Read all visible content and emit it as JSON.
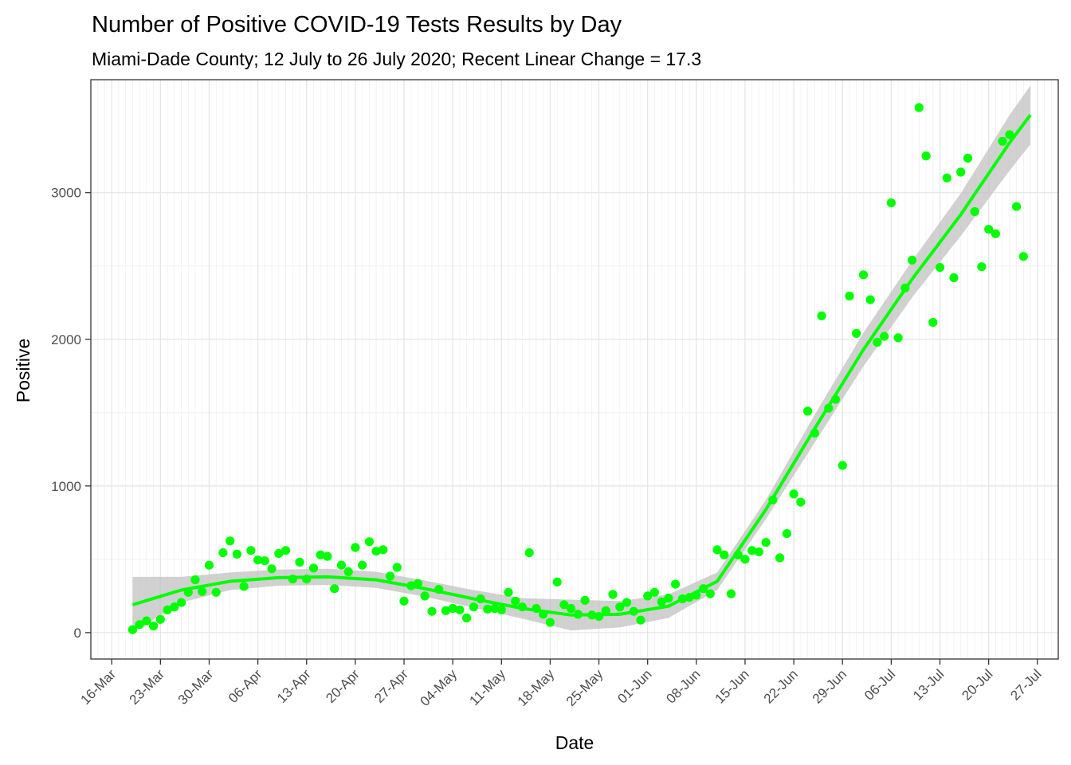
{
  "chart_data": {
    "type": "scatter",
    "title": "Number of Positive COVID-19 Tests Results by Day",
    "subtitle": "Miami-Dade County; 12 July to 26 July 2020; Recent Linear Change = 17.3",
    "xlabel": "Date",
    "ylabel": "Positive",
    "x_tick_labels": [
      "16-Mar",
      "23-Mar",
      "30-Mar",
      "06-Apr",
      "13-Apr",
      "20-Apr",
      "27-Apr",
      "04-May",
      "11-May",
      "18-May",
      "25-May",
      "01-Jun",
      "08-Jun",
      "15-Jun",
      "22-Jun",
      "29-Jun",
      "06-Jul",
      "13-Jul",
      "20-Jul",
      "27-Jul"
    ],
    "x_tick_dates": [
      "2020-03-16",
      "2020-03-23",
      "2020-03-30",
      "2020-04-06",
      "2020-04-13",
      "2020-04-20",
      "2020-04-27",
      "2020-05-04",
      "2020-05-11",
      "2020-05-18",
      "2020-05-25",
      "2020-06-01",
      "2020-06-08",
      "2020-06-15",
      "2020-06-22",
      "2020-06-29",
      "2020-07-06",
      "2020-07-13",
      "2020-07-20",
      "2020-07-27"
    ],
    "y_ticks": [
      0,
      1000,
      2000,
      3000
    ],
    "xlim": [
      "2020-03-13",
      "2020-07-30"
    ],
    "ylim": [
      -180,
      3770
    ],
    "grid": true,
    "points_color": "#00ff00",
    "smooth_color": "#00ff00",
    "band_color": "#bebebe",
    "points": {
      "start_date": "2020-03-19",
      "values": [
        20,
        55,
        80,
        45,
        90,
        155,
        175,
        205,
        275,
        360,
        280,
        460,
        275,
        545,
        625,
        535,
        315,
        560,
        495,
        490,
        435,
        540,
        560,
        365,
        480,
        365,
        440,
        530,
        520,
        300,
        460,
        415,
        580,
        460,
        620,
        555,
        565,
        385,
        445,
        215,
        320,
        335,
        250,
        145,
        295,
        150,
        165,
        155,
        100,
        175,
        230,
        160,
        165,
        155,
        275,
        215,
        175,
        545,
        165,
        125,
        70,
        345,
        190,
        165,
        125,
        220,
        120,
        110,
        150,
        260,
        175,
        205,
        145,
        85,
        250,
        275,
        210,
        235,
        330,
        230,
        240,
        255,
        300,
        265,
        565,
        530,
        265,
        530,
        500,
        560,
        550,
        615,
        905,
        510,
        675,
        945,
        890,
        1510,
        1360,
        2160,
        1530,
        1590,
        1140,
        2295,
        2040,
        2440,
        2270,
        1980,
        2020,
        2930,
        2010,
        2350,
        2540,
        3580,
        3250,
        2115,
        2490,
        3100,
        2420,
        3140,
        3235,
        2870,
        2495,
        2750,
        2720,
        3350,
        3395,
        2905,
        2565
      ]
    },
    "smooth": {
      "dates": [
        "2020-03-19",
        "2020-03-26",
        "2020-04-02",
        "2020-04-09",
        "2020-04-16",
        "2020-04-23",
        "2020-04-30",
        "2020-05-07",
        "2020-05-14",
        "2020-05-21",
        "2020-05-28",
        "2020-06-04",
        "2020-06-11",
        "2020-06-18",
        "2020-06-25",
        "2020-07-02",
        "2020-07-09",
        "2020-07-16",
        "2020-07-23",
        "2020-07-26"
      ],
      "fit": [
        190,
        290,
        350,
        375,
        380,
        360,
        300,
        230,
        165,
        120,
        125,
        180,
        350,
        840,
        1390,
        1930,
        2410,
        2850,
        3340,
        3530
      ],
      "lower": [
        0,
        205,
        290,
        320,
        325,
        305,
        245,
        170,
        95,
        15,
        35,
        100,
        290,
        775,
        1295,
        1815,
        2285,
        2705,
        3150,
        3330
      ],
      "upper": [
        380,
        380,
        410,
        430,
        435,
        415,
        355,
        290,
        235,
        225,
        215,
        260,
        410,
        905,
        1485,
        2045,
        2535,
        2995,
        3530,
        3730
      ]
    }
  }
}
